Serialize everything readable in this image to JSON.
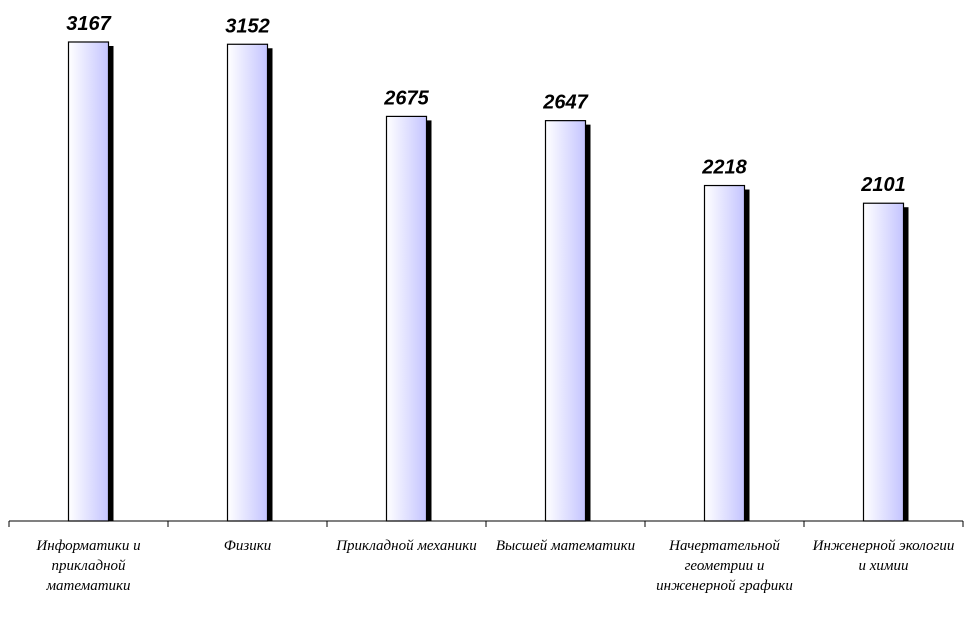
{
  "chart_data": {
    "type": "bar",
    "categories": [
      "Информатики и прикладной математики",
      "Физики",
      "Прикладной механики",
      "Высшей математики",
      "Начертательной геометрии и инженерной графики",
      "Инженерной экологии и химии"
    ],
    "values": [
      3167,
      3152,
      2675,
      2647,
      2218,
      2101
    ],
    "color": "#c4c4ff",
    "ylim": [
      0,
      3200
    ]
  }
}
